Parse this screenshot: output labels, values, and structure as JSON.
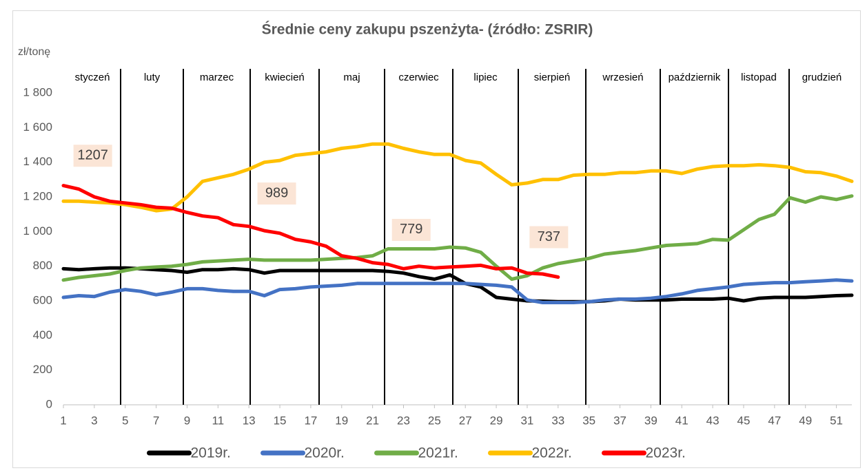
{
  "chart_data": {
    "type": "line",
    "title": "Średnie ceny zakupu pszenżyta- (źródło: ZSRIR)",
    "y_label": "zł/tonę",
    "months": [
      "styczeń",
      "luty",
      "marzec",
      "kwiecień",
      "maj",
      "czerwiec",
      "lipiec",
      "sierpień",
      "wrzesień",
      "październik",
      "listopad",
      "grudzień"
    ],
    "x": [
      1,
      2,
      3,
      4,
      5,
      6,
      7,
      8,
      9,
      10,
      11,
      12,
      13,
      14,
      15,
      16,
      17,
      18,
      19,
      20,
      21,
      22,
      23,
      24,
      25,
      26,
      27,
      28,
      29,
      30,
      31,
      32,
      33,
      34,
      35,
      36,
      37,
      38,
      39,
      40,
      41,
      42,
      43,
      44,
      45,
      46,
      47,
      48,
      49,
      50,
      51,
      52
    ],
    "xlim": [
      1,
      52
    ],
    "xticks": [
      1,
      3,
      5,
      7,
      9,
      11,
      13,
      15,
      17,
      19,
      21,
      23,
      25,
      27,
      29,
      31,
      33,
      35,
      37,
      39,
      41,
      43,
      45,
      47,
      49,
      51
    ],
    "ylim": [
      0,
      1800
    ],
    "yticks": [
      0,
      200,
      400,
      600,
      800,
      {
        "value": 1000,
        "label": "1 000"
      },
      {
        "value": 1200,
        "label": "1 200"
      },
      {
        "value": 1400,
        "label": "1 400"
      },
      {
        "value": 1600,
        "label": "1 600"
      },
      {
        "value": 1800,
        "label": "1 800"
      }
    ],
    "grid": false,
    "legend": "bottom",
    "series": [
      {
        "name": "2019r.",
        "color": "#000000",
        "values": [
          785,
          780,
          785,
          790,
          790,
          785,
          780,
          775,
          765,
          780,
          780,
          785,
          780,
          760,
          775,
          775,
          775,
          775,
          775,
          775,
          775,
          770,
          760,
          740,
          725,
          750,
          700,
          680,
          620,
          610,
          600,
          598,
          595,
          595,
          595,
          600,
          610,
          605,
          605,
          605,
          610,
          610,
          610,
          615,
          600,
          615,
          620,
          620,
          620,
          625,
          630,
          632
        ]
      },
      {
        "name": "2020r.",
        "color": "#4472c4",
        "values": [
          620,
          630,
          625,
          650,
          665,
          655,
          635,
          650,
          670,
          670,
          660,
          655,
          655,
          630,
          665,
          670,
          680,
          685,
          690,
          700,
          700,
          700,
          700,
          700,
          700,
          700,
          700,
          695,
          690,
          680,
          605,
          590,
          590,
          590,
          595,
          605,
          610,
          610,
          615,
          625,
          640,
          660,
          670,
          680,
          695,
          700,
          705,
          705,
          710,
          715,
          720,
          715
        ]
      },
      {
        "name": "2021r.",
        "color": "#70ad47",
        "values": [
          720,
          735,
          745,
          755,
          775,
          790,
          795,
          800,
          810,
          825,
          830,
          835,
          840,
          835,
          835,
          835,
          835,
          840,
          845,
          850,
          860,
          900,
          900,
          900,
          900,
          910,
          905,
          880,
          800,
          725,
          745,
          790,
          815,
          830,
          845,
          870,
          880,
          890,
          905,
          920,
          925,
          930,
          955,
          950,
          1010,
          1070,
          1100,
          1195,
          1170,
          1200,
          1185,
          1205
        ]
      },
      {
        "name": "2022r.",
        "color": "#ffc000",
        "values": [
          1175,
          1175,
          1170,
          1165,
          1155,
          1140,
          1120,
          1130,
          1200,
          1290,
          1310,
          1330,
          1360,
          1400,
          1410,
          1440,
          1450,
          1460,
          1480,
          1490,
          1505,
          1505,
          1480,
          1460,
          1445,
          1445,
          1410,
          1395,
          1330,
          1270,
          1280,
          1300,
          1300,
          1325,
          1330,
          1330,
          1340,
          1340,
          1350,
          1350,
          1335,
          1360,
          1375,
          1380,
          1380,
          1385,
          1380,
          1370,
          1345,
          1340,
          1320,
          1290
        ]
      },
      {
        "name": "2023r.",
        "color": "#ff0000",
        "values": [
          1265,
          1245,
          1200,
          1175,
          1165,
          1155,
          1140,
          1135,
          1110,
          1090,
          1080,
          1040,
          1030,
          1005,
          990,
          955,
          940,
          915,
          860,
          845,
          820,
          810,
          785,
          800,
          790,
          795,
          800,
          805,
          785,
          790,
          760,
          755,
          737,
          null,
          null,
          null,
          null,
          null,
          null,
          null,
          null,
          null,
          null,
          null,
          null,
          null,
          null,
          null,
          null,
          null,
          null,
          null
        ]
      }
    ],
    "annotations": [
      {
        "x": 2.9,
        "value": 1207
      },
      {
        "x": 14.8,
        "value": 989
      },
      {
        "x": 23.5,
        "value": 779
      },
      {
        "x": 32.4,
        "value": 737
      }
    ]
  }
}
